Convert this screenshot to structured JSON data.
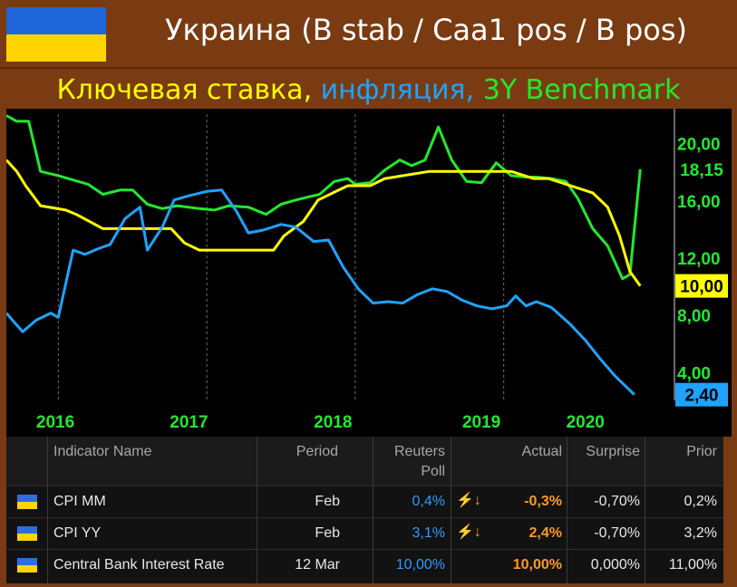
{
  "header": {
    "title": "Украина (B stab / Caa1 pos / B pos)",
    "subtitle_parts": [
      "Ключевая ставка,",
      "инфляция,",
      "3Y Benchmark"
    ]
  },
  "colors": {
    "background": "#7a3b12",
    "flag_blue": "#1f66d9",
    "flag_yellow": "#ffd400",
    "key_rate": "#ffff00",
    "inflation": "#1fa3ff",
    "benchmark": "#22e830"
  },
  "chart_data": {
    "type": "line",
    "title": "",
    "xlabel": "",
    "ylabel": "",
    "x_tick_labels": [
      "2016",
      "2017",
      "2018",
      "2019",
      "2020"
    ],
    "y_tick_labels": [
      "20,00",
      "16,00",
      "12,00",
      "8,00",
      "4,00"
    ],
    "y_ticks": [
      20,
      16,
      12,
      8,
      4
    ],
    "ylim": [
      2.0,
      22.0
    ],
    "xlim": [
      2015.65,
      2020.15
    ],
    "grid": "vertical, dashed",
    "last_value_labels": [
      "18,15",
      "10,00",
      "2,40"
    ],
    "series": [
      {
        "color": "#22e830",
        "last_label": "18,15",
        "x": [
          2015.65,
          2015.72,
          2015.8,
          2015.88,
          2016.0,
          2016.1,
          2016.2,
          2016.3,
          2016.42,
          2016.5,
          2016.6,
          2016.7,
          2016.8,
          2016.95,
          2017.05,
          2017.15,
          2017.28,
          2017.4,
          2017.5,
          2017.6,
          2017.68,
          2017.76,
          2017.86,
          2017.95,
          2018.0,
          2018.1,
          2018.2,
          2018.3,
          2018.38,
          2018.47,
          2018.56,
          2018.65,
          2018.75,
          2018.85,
          2018.95,
          2019.05,
          2019.15,
          2019.22,
          2019.32,
          2019.42,
          2019.5,
          2019.6,
          2019.7,
          2019.8,
          2019.85,
          2019.92
        ],
        "y": [
          21.9,
          21.5,
          21.5,
          18.0,
          17.7,
          17.4,
          17.1,
          16.4,
          16.7,
          16.7,
          15.7,
          15.4,
          15.6,
          15.4,
          15.3,
          15.6,
          15.5,
          15.0,
          15.7,
          16.0,
          16.2,
          16.4,
          17.3,
          17.5,
          17.1,
          17.2,
          18.1,
          18.8,
          18.4,
          18.8,
          21.1,
          18.8,
          17.3,
          17.2,
          18.6,
          17.7,
          17.6,
          17.6,
          17.5,
          17.3,
          16.1,
          14.0,
          12.8,
          10.5,
          10.8,
          18.15
        ]
      },
      {
        "color": "#ffff00",
        "last_label": "10,00",
        "x": [
          2015.65,
          2015.72,
          2015.78,
          2015.88,
          2016.05,
          2016.12,
          2016.3,
          2016.42,
          2016.52,
          2016.62,
          2016.76,
          2016.85,
          2016.95,
          2017.08,
          2017.3,
          2017.45,
          2017.52,
          2017.65,
          2017.75,
          2017.85,
          2017.95,
          2018.1,
          2018.2,
          2018.5,
          2018.7,
          2018.85,
          2019.05,
          2019.2,
          2019.3,
          2019.45,
          2019.6,
          2019.7,
          2019.78,
          2019.85,
          2019.92
        ],
        "y": [
          18.8,
          18.0,
          17.0,
          15.6,
          15.3,
          15.0,
          14.0,
          14.0,
          14.0,
          14.0,
          14.0,
          13.0,
          12.5,
          12.5,
          12.5,
          12.5,
          13.5,
          14.5,
          16.0,
          16.5,
          17.0,
          17.0,
          17.5,
          18.0,
          18.0,
          18.0,
          18.0,
          17.5,
          17.5,
          17.0,
          16.5,
          15.5,
          13.5,
          11.0,
          10.0
        ]
      },
      {
        "color": "#1fa3ff",
        "last_label": "2,40",
        "x": [
          2015.65,
          2015.7,
          2015.76,
          2015.85,
          2015.95,
          2016.0,
          2016.1,
          2016.18,
          2016.27,
          2016.35,
          2016.45,
          2016.55,
          2016.6,
          2016.7,
          2016.78,
          2016.88,
          2017.0,
          2017.1,
          2017.2,
          2017.28,
          2017.38,
          2017.5,
          2017.6,
          2017.72,
          2017.82,
          2017.92,
          2018.02,
          2018.12,
          2018.22,
          2018.32,
          2018.42,
          2018.52,
          2018.62,
          2018.72,
          2018.82,
          2018.92,
          2019.02,
          2019.08,
          2019.15,
          2019.22,
          2019.32,
          2019.45,
          2019.55,
          2019.65,
          2019.75,
          2019.88
        ],
        "y": [
          8.1,
          7.5,
          6.8,
          7.6,
          8.1,
          7.8,
          12.5,
          12.2,
          12.6,
          12.9,
          14.7,
          15.5,
          12.5,
          14.1,
          16.0,
          16.3,
          16.6,
          16.7,
          15.2,
          13.7,
          13.9,
          14.3,
          14.1,
          13.1,
          13.2,
          11.3,
          9.8,
          8.8,
          8.9,
          8.8,
          9.4,
          9.8,
          9.6,
          9.0,
          8.6,
          8.4,
          8.6,
          9.3,
          8.6,
          8.9,
          8.5,
          7.3,
          6.2,
          4.9,
          3.7,
          2.4
        ]
      }
    ]
  },
  "table": {
    "headers": {
      "indicator": "Indicator Name",
      "period": "Period",
      "poll_line1": "Reuters",
      "poll_line2": "Poll",
      "actual": "Actual",
      "surprise": "Surprise",
      "prior": "Prior"
    },
    "rows": [
      {
        "name": "CPI MM",
        "period": "Feb",
        "poll": "0,4%",
        "signal": "⚡↓",
        "actual": "-0,3%",
        "surprise": "-0,70%",
        "prior": "0,2%"
      },
      {
        "name": "CPI YY",
        "period": "Feb",
        "poll": "3,1%",
        "signal": "⚡↓",
        "actual": "2,4%",
        "surprise": "-0,70%",
        "prior": "3,2%"
      },
      {
        "name": "Central Bank Interest Rate",
        "period": "12 Mar",
        "poll": "10,00%",
        "signal": "",
        "actual": "10,00%",
        "surprise": "0,000%",
        "prior": "11,00%"
      }
    ]
  }
}
